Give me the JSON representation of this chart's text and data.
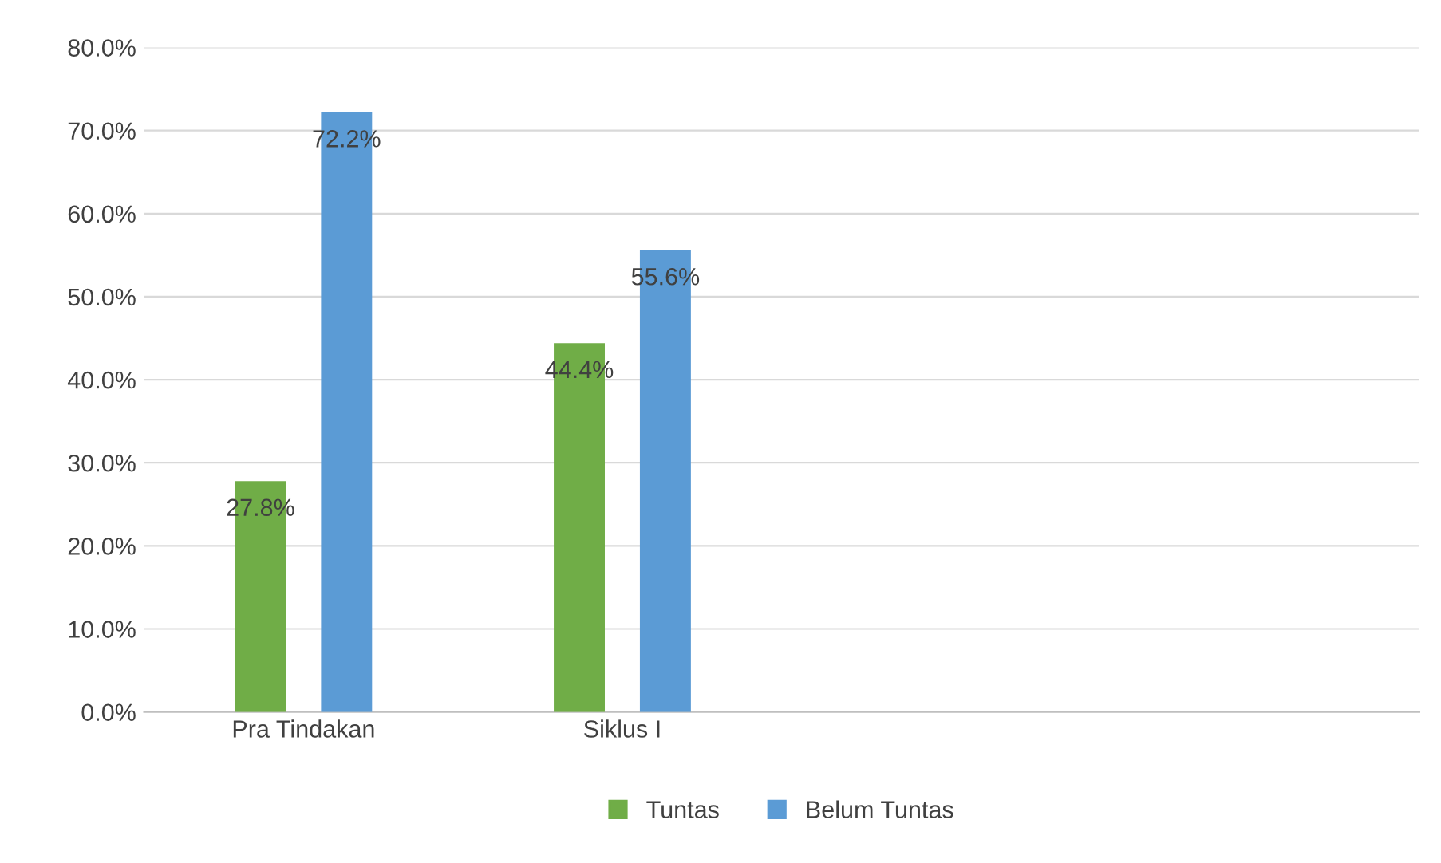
{
  "chart_data": {
    "type": "bar",
    "categories": [
      "Pra Tindakan",
      "Siklus I",
      null,
      null
    ],
    "series": [
      {
        "name": "Tuntas",
        "color": "#70ad47",
        "values": [
          27.8,
          44.4,
          null,
          null
        ],
        "value_labels": [
          "27.8%",
          "44.4%",
          null,
          null
        ]
      },
      {
        "name": "Belum Tuntas",
        "color": "#5b9bd5",
        "values": [
          72.2,
          55.6,
          null,
          null
        ],
        "value_labels": [
          "72.2%",
          "55.6%",
          null,
          null
        ]
      }
    ],
    "ylim": [
      0,
      80
    ],
    "yticks": [
      {
        "value": 0,
        "label": "0.0%"
      },
      {
        "value": 10,
        "label": "10.0%"
      },
      {
        "value": 20,
        "label": "20.0%"
      },
      {
        "value": 30,
        "label": "30.0%"
      },
      {
        "value": 40,
        "label": "40.0%"
      },
      {
        "value": 50,
        "label": "50.0%"
      },
      {
        "value": 60,
        "label": "60.0%"
      },
      {
        "value": 70,
        "label": "70.0%"
      },
      {
        "value": 80,
        "label": "80.0%"
      }
    ],
    "grid": "y",
    "legend": "bottom"
  }
}
